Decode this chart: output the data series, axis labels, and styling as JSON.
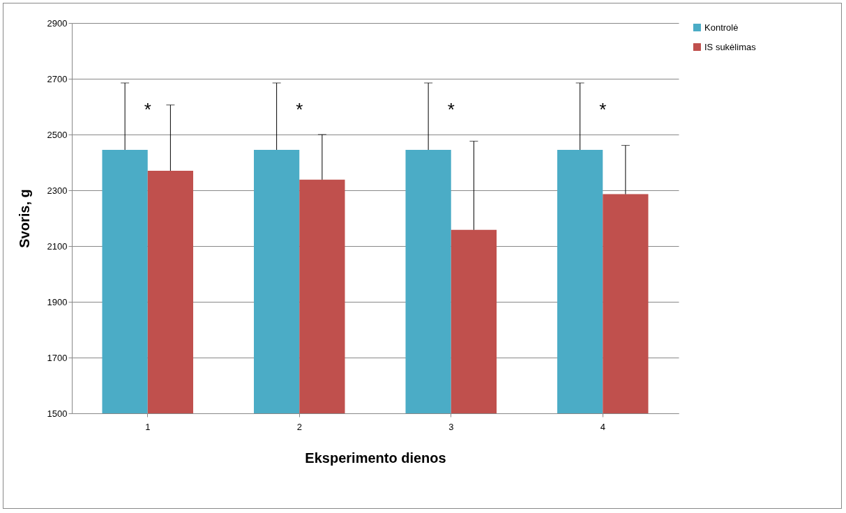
{
  "chart_data": {
    "type": "bar",
    "xlabel": "Eksperimento dienos",
    "ylabel": "Svoris, g",
    "categories": [
      "1",
      "2",
      "3",
      "4"
    ],
    "series": [
      {
        "name": "Kontrolė",
        "color": "#4bacc6",
        "values": [
          2445,
          2445,
          2445,
          2445
        ],
        "errors": [
          [
            2445,
            2685
          ],
          [
            2445,
            2685
          ],
          [
            2445,
            2685
          ],
          [
            2445,
            2685
          ]
        ]
      },
      {
        "name": "IS sukėlimas",
        "color": "#c0504d",
        "values": [
          2370,
          2338,
          2158,
          2286
        ],
        "errors": [
          [
            2370,
            2606
          ],
          [
            2338,
            2500
          ],
          [
            2158,
            2476
          ],
          [
            2286,
            2461
          ]
        ]
      }
    ],
    "ylim": [
      1500,
      2900
    ],
    "yticks": [
      1500,
      1700,
      1900,
      2100,
      2300,
      2500,
      2700,
      2900
    ],
    "grid": "y",
    "legend": "right",
    "annotations": [
      "*",
      "*",
      "*",
      "*"
    ]
  }
}
